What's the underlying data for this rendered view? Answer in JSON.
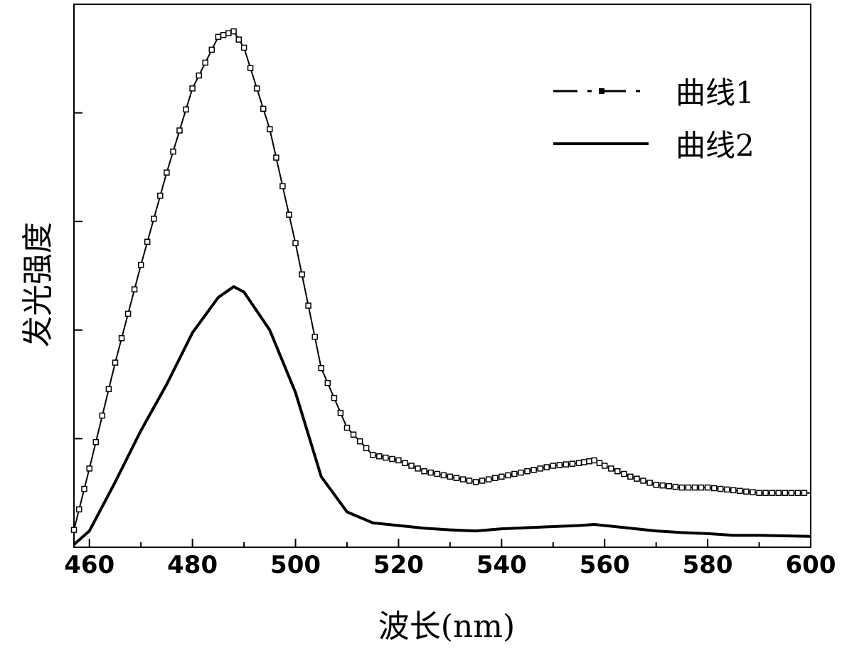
{
  "chart_data": {
    "type": "line",
    "xlabel": "波长(nm)",
    "ylabel": "发光强度",
    "xlim": [
      457,
      600
    ],
    "ylim": [
      0,
      100
    ],
    "grid": false,
    "legend_position": "top-right",
    "x_ticks": [
      460,
      480,
      500,
      520,
      540,
      560,
      580,
      600
    ],
    "y_ticks_labeled": false,
    "series": [
      {
        "name": "曲线1",
        "style": "dash-dot with square markers",
        "color": "#000000",
        "x": [
          457,
          460,
          465,
          470,
          475,
          480,
          485,
          488,
          490,
          495,
          500,
          505,
          510,
          515,
          520,
          525,
          530,
          535,
          540,
          545,
          550,
          555,
          558,
          560,
          565,
          570,
          575,
          580,
          585,
          590,
          595,
          600
        ],
        "y": [
          3.2,
          14.5,
          34,
          52,
          69,
          84.5,
          94,
          95,
          92,
          77,
          56,
          33,
          22,
          17,
          16,
          14,
          13,
          12,
          13,
          14,
          15,
          15.5,
          16,
          15,
          13,
          11.5,
          11,
          11,
          10.5,
          10,
          10,
          10
        ]
      },
      {
        "name": "曲线2",
        "style": "solid",
        "color": "#000000",
        "x": [
          457,
          460,
          465,
          470,
          475,
          480,
          485,
          488,
          490,
          495,
          500,
          505,
          510,
          515,
          520,
          525,
          530,
          535,
          540,
          545,
          550,
          555,
          558,
          560,
          565,
          570,
          575,
          580,
          585,
          590,
          595,
          600
        ],
        "y": [
          0.5,
          3,
          12,
          21.5,
          30,
          39.5,
          46,
          48,
          47,
          40,
          28.5,
          13,
          6.5,
          4.5,
          4,
          3.5,
          3.2,
          3,
          3.4,
          3.6,
          3.8,
          4,
          4.2,
          4,
          3.5,
          3,
          2.7,
          2.5,
          2.2,
          2.2,
          2.1,
          2
        ]
      }
    ]
  }
}
